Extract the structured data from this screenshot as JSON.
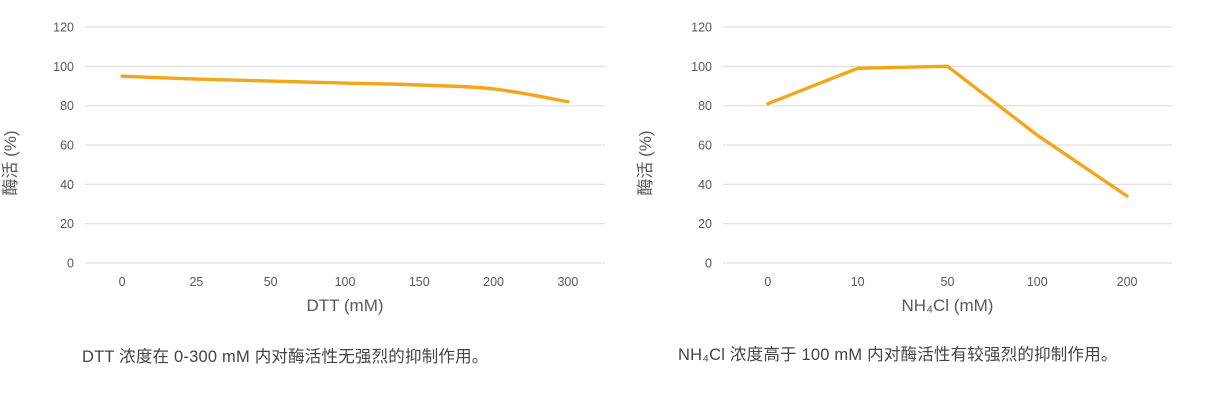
{
  "colors": {
    "line": "#F2A61A",
    "gridline": "#D9D9D9",
    "tick_label": "#595959",
    "axis_title": "#595959",
    "caption": "#444444",
    "background": "#FFFFFF"
  },
  "chart_data": [
    {
      "type": "line",
      "title": "",
      "categories": [
        "0",
        "25",
        "50",
        "100",
        "150",
        "200",
        "300"
      ],
      "values": [
        95,
        93.5,
        92.5,
        91.5,
        90.5,
        88.5,
        82
      ],
      "xlabel": "DTT (mM)",
      "ylabel": "酶活 (%)",
      "ylim": [
        0,
        120
      ],
      "yticks": [
        0,
        20,
        40,
        60,
        80,
        100,
        120
      ],
      "grid": true,
      "legend": false,
      "smooth": true,
      "line_color": "#F2A61A",
      "caption": "DTT 浓度在 0-300 mM 内对酶活性无强烈的抑制作用。"
    },
    {
      "type": "line",
      "title": "",
      "categories": [
        "0",
        "10",
        "50",
        "100",
        "200"
      ],
      "values": [
        81,
        99,
        100,
        65,
        34
      ],
      "xlabel": "NH₄Cl (mM)",
      "ylabel": "酶活 (%)",
      "ylim": [
        0,
        120
      ],
      "yticks": [
        0,
        20,
        40,
        60,
        80,
        100,
        120
      ],
      "grid": true,
      "legend": false,
      "smooth": false,
      "line_color": "#F2A61A",
      "caption": "NH₄Cl 浓度高于 100 mM 内对酶活性有较强烈的抑制作用。"
    }
  ]
}
